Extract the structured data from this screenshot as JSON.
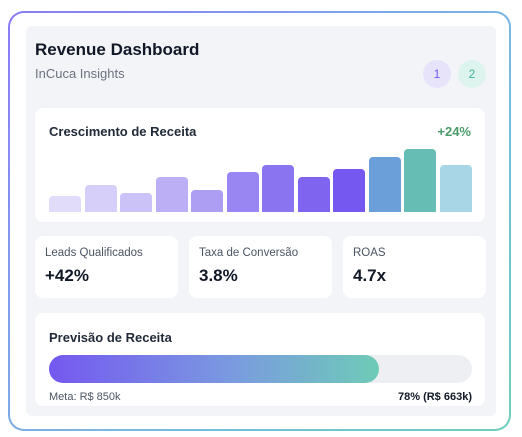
{
  "header": {
    "title": "Revenue Dashboard",
    "subtitle": "InCuca Insights"
  },
  "pagination": {
    "pages": [
      "1",
      "2"
    ],
    "colors": [
      "#6d5ce8",
      "#3fb39b"
    ]
  },
  "growth": {
    "title": "Crescimento de Receita",
    "change": "+24%",
    "change_color": "#4a9b6a",
    "bar_levels": [
      0.25,
      0.42,
      0.3,
      0.55,
      0.35,
      0.62,
      0.73,
      0.55,
      0.67,
      0.86,
      0.98,
      0.73
    ],
    "bar_colors": [
      "#e2dcfb",
      "#d6cffa",
      "#cbc3f8",
      "#bcaff6",
      "#ad9ef4",
      "#9a86f2",
      "#8b74f0",
      "#7e64ee",
      "#7558f0",
      "#6b9fda",
      "#66bdb4",
      "#a8d6e6"
    ]
  },
  "kpis": [
    {
      "label": "Leads Qualificados",
      "value": "+42%"
    },
    {
      "label": "Taxa de Conversão",
      "value": "3.8%"
    },
    {
      "label": "ROAS",
      "value": "4.7x"
    }
  ],
  "forecast": {
    "title": "Previsão de Receita",
    "progress": 0.78,
    "meta": "Meta: R$ 850k",
    "progress_label": "78% (R$ 663k)"
  }
}
